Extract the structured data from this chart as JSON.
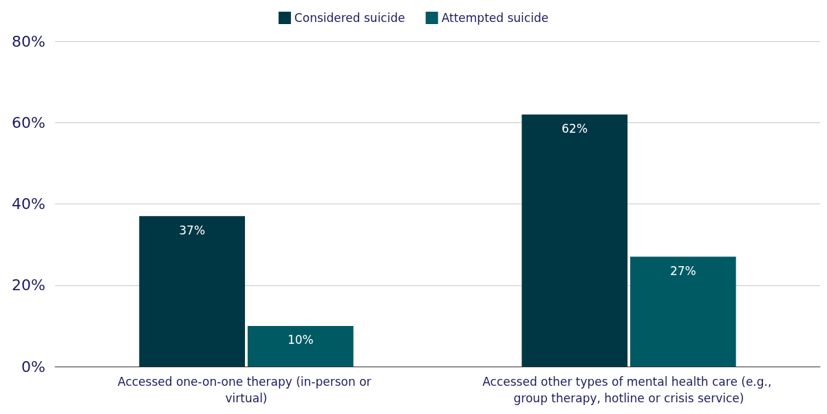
{
  "chart_data": {
    "type": "bar",
    "categories": [
      "Accessed one-on-one therapy (in-person or virtual)",
      "Accessed other types of mental health care (e.g., group therapy, hotline or crisis service)"
    ],
    "series": [
      {
        "name": "Considered suicide",
        "color": "#003745",
        "values": [
          37,
          62
        ],
        "value_labels": [
          "37%",
          "62%"
        ]
      },
      {
        "name": "Attempted suicide",
        "color": "#005a64",
        "values": [
          10,
          27
        ],
        "value_labels": [
          "10%",
          "27%"
        ]
      }
    ],
    "ylim": [
      0,
      80
    ],
    "yticks": [
      {
        "value": 0,
        "label": "0%"
      },
      {
        "value": 20,
        "label": "20%"
      },
      {
        "value": 40,
        "label": "40%"
      },
      {
        "value": 60,
        "label": "60%"
      },
      {
        "value": 80,
        "label": "80%"
      }
    ],
    "grid": "y",
    "legend": "top"
  }
}
